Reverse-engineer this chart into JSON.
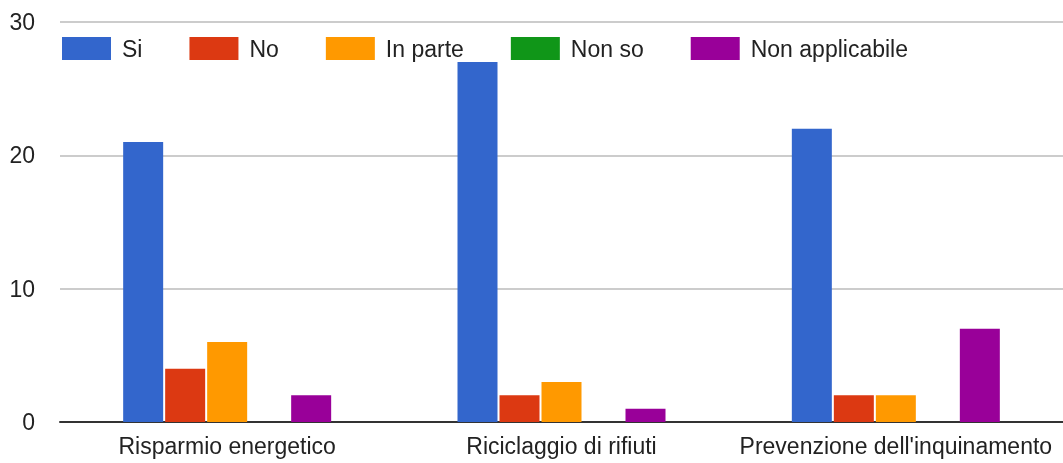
{
  "chart_data": {
    "type": "bar",
    "categories": [
      "Risparmio energetico",
      "Riciclaggio di rifiuti",
      "Prevenzione dell'inquinamento"
    ],
    "series": [
      {
        "name": "Si",
        "color": "#3366cc",
        "values": [
          21,
          27,
          22
        ]
      },
      {
        "name": "No",
        "color": "#dc3912",
        "values": [
          4,
          2,
          2
        ]
      },
      {
        "name": "In parte",
        "color": "#ff9900",
        "values": [
          6,
          3,
          2
        ]
      },
      {
        "name": "Non so",
        "color": "#109618",
        "values": [
          0,
          0,
          0
        ]
      },
      {
        "name": "Non applicabile",
        "color": "#990099",
        "values": [
          2,
          1,
          7
        ]
      }
    ],
    "ylim": [
      0,
      30
    ],
    "yticks": [
      0,
      10,
      20,
      30
    ],
    "grid": "y",
    "legend": "top left"
  }
}
